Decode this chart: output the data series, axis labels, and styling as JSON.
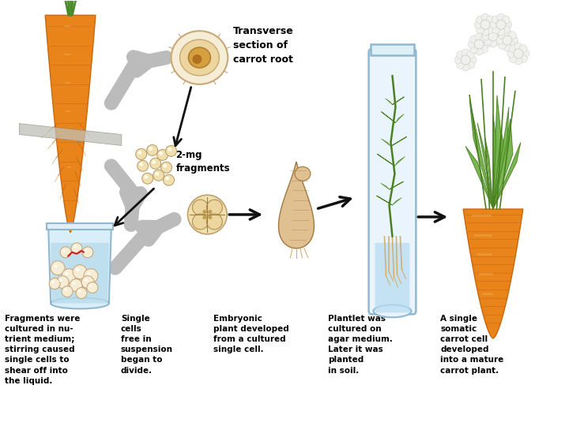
{
  "bg_color": "#ffffff",
  "labels": {
    "transverse": "Transverse\nsection of\ncarrot root",
    "fragments_label": "2-mg\nfragments",
    "caption1": "Fragments were\ncultured in nu-\ntrient medium;\nstirring caused\nsingle cells to\nshear off into\nthe liquid.",
    "caption2": "Single\ncells\nfree in\nsuspension\nbegan to\ndivide.",
    "caption3": "Embryonic\nplant developed\nfrom a cultured\nsingle cell.",
    "caption4": "Plantlet was\ncultured on\nagar medium.\nLater it was\nplanted\nin soil.",
    "caption5": "A single\nsomatic\ncarrot cell\ndeveloped\ninto a mature\ncarrot plant."
  },
  "colors": {
    "carrot_orange": "#E8841A",
    "carrot_dark": "#C96810",
    "carrot_light": "#F4B060",
    "carrot_green": "#4A8C2A",
    "cell_outer": "#F5EDD5",
    "cell_mid": "#EDD5A0",
    "cell_nucleus": "#D4A040",
    "cell_edge": "#C8A878",
    "fragment_fill": "#F0E0B0",
    "fragment_edge": "#C0A070",
    "flask_fill": "#D8EEF8",
    "flask_edge": "#90B8D0",
    "flask_water": "#B8DCEC",
    "bubble_fill": "#F5EDD5",
    "bubble_edge": "#C8A070",
    "embryo_fill": "#E0C090",
    "embryo_edge": "#A07840",
    "tube_fill": "#EAF4FC",
    "tube_edge": "#90B8D0",
    "tube_water": "#B8DCF0",
    "plant_green": "#4A8020",
    "plant_light": "#6AB040",
    "root_color": "#D4B070",
    "flower_fill": "#F0F0EE",
    "flower_edge": "#C8C8C0",
    "arrow_gray": "#BBBBBB",
    "arrow_black": "#111111",
    "cut_gray": "#C0C0B8",
    "red_strand": "#CC2020",
    "text_color": "#000000"
  },
  "figsize": [
    7.2,
    5.4
  ],
  "dpi": 100
}
